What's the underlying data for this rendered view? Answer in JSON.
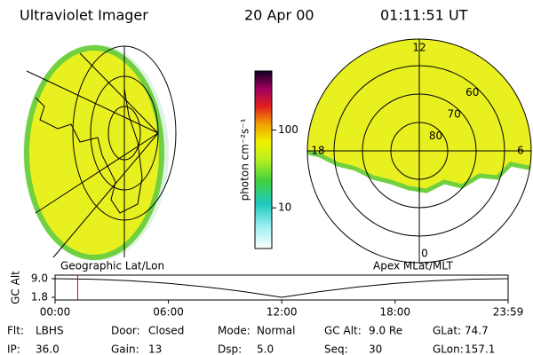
{
  "header": {
    "title": "Ultraviolet Imager",
    "date": "20 Apr 00",
    "time": "01:11:51 UT"
  },
  "left_panel": {
    "label": "Geographic Lat/Lon"
  },
  "right_panel": {
    "label": "Apex MLat/MLT",
    "mlt_ticks": [
      12,
      18,
      6,
      0
    ],
    "lat_ticks": [
      80,
      70,
      60
    ]
  },
  "colorbar": {
    "label": "photon cm⁻²s⁻¹",
    "scale": "log",
    "lim": [
      3,
      575
    ],
    "ticks": [
      10,
      100
    ]
  },
  "timeline": {
    "ylabel": "GC Alt",
    "ylim": [
      1.8,
      9.0
    ],
    "yticks": [
      {
        "value": 9.0,
        "label": "9.0"
      },
      {
        "value": 1.8,
        "label": "1.8"
      }
    ],
    "xlim": [
      0,
      23.983
    ],
    "xticks": [
      {
        "value": 0,
        "label": "00:00"
      },
      {
        "value": 6,
        "label": "06:00"
      },
      {
        "value": 12,
        "label": "12:00"
      },
      {
        "value": 18,
        "label": "18:00"
      },
      {
        "value": 23.983,
        "label": "23:59"
      }
    ],
    "x": [
      0,
      2,
      4,
      6,
      8,
      10,
      12,
      14,
      16,
      18,
      20,
      22,
      23.983
    ],
    "values": [
      9.0,
      8.8,
      8.2,
      7.2,
      5.8,
      4.0,
      1.8,
      4.0,
      5.8,
      7.2,
      8.2,
      8.8,
      9.0
    ],
    "current_time": 1.198,
    "marker_color": "#e00000"
  },
  "footer": {
    "rows": [
      [
        {
          "label": "Flt:",
          "value": "LBHS"
        },
        {
          "label": "Door:",
          "value": "Closed"
        },
        {
          "label": "Mode:",
          "value": "Normal"
        },
        {
          "label": "GC Alt:",
          "value": "9.0 Re"
        },
        {
          "label": "GLat:",
          "value": "74.7"
        }
      ],
      [
        {
          "label": "IP:",
          "value": "36.0"
        },
        {
          "label": "Gain:",
          "value": "13"
        },
        {
          "label": "Dsp:",
          "value": "5.0"
        },
        {
          "label": "Seq:",
          "value": "30"
        },
        {
          "label": "GLon:",
          "value": "157.1"
        }
      ]
    ]
  }
}
